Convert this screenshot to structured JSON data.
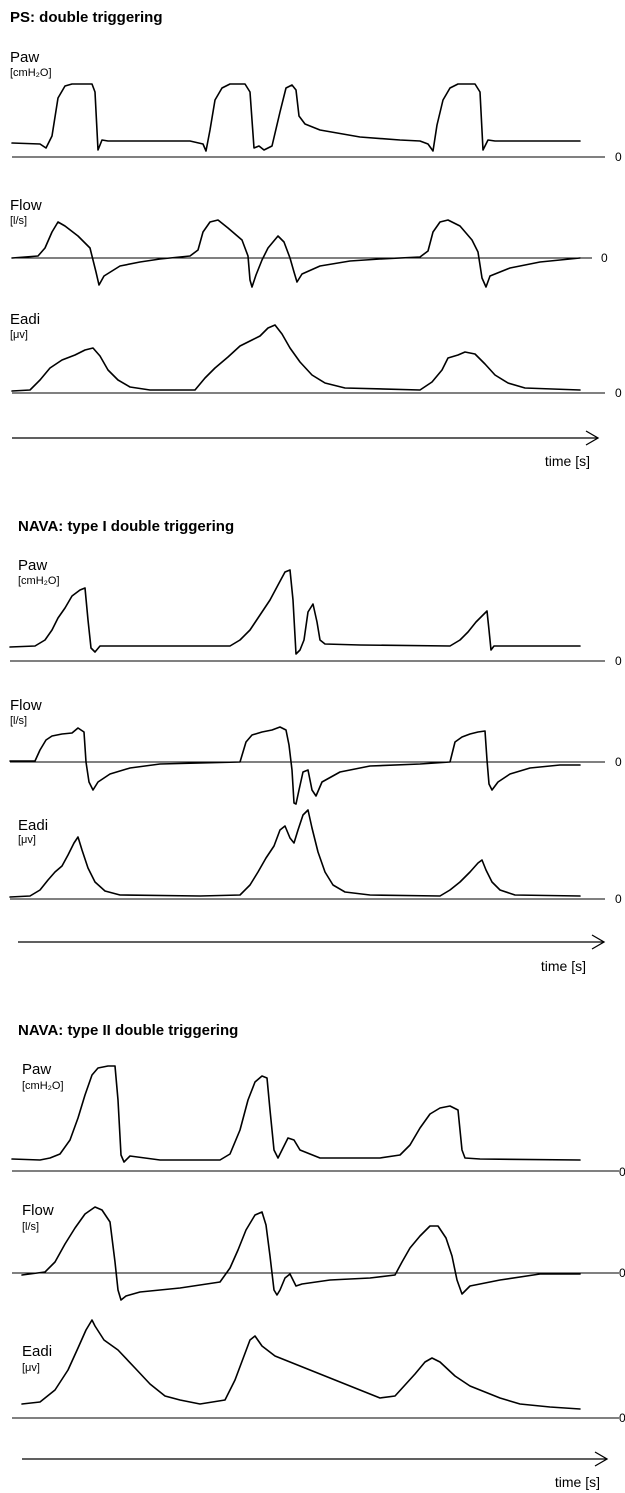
{
  "chart_data": [
    {
      "type": "line",
      "title": "PS: double triggering",
      "xlabel": "time [s]",
      "x": [
        0,
        10,
        20,
        30,
        40,
        50,
        60,
        70,
        80,
        90,
        100
      ],
      "panels": [
        {
          "name": "Paw",
          "unit": "[cmH₂O]",
          "zero_label": "0",
          "ylim": [
            -0.2,
            1
          ],
          "values": [
            0.0,
            0.85,
            0.0,
            0.0,
            0.85,
            0.0,
            0.85,
            0.1,
            0.0,
            0.85,
            0.0
          ]
        },
        {
          "name": "Flow",
          "unit": "[l/s]",
          "zero_label": "0",
          "ylim": [
            -1,
            1
          ],
          "values": [
            0.0,
            0.8,
            -0.6,
            -0.2,
            0.8,
            -0.7,
            0.4,
            -0.2,
            0.0,
            0.8,
            -0.6
          ]
        },
        {
          "name": "Eadi",
          "unit": "[μv]",
          "zero_label": "0",
          "ylim": [
            0,
            1
          ],
          "values": [
            0.0,
            0.4,
            0.6,
            0.0,
            0.6,
            0.9,
            0.3,
            0.0,
            0.0,
            0.5,
            0.0
          ]
        }
      ]
    },
    {
      "type": "line",
      "title": "NAVA: type I double triggering",
      "xlabel": "time [s]",
      "x": [
        0,
        10,
        20,
        30,
        40,
        50,
        60,
        70,
        80,
        90,
        100
      ],
      "panels": [
        {
          "name": "Paw",
          "unit": "[cmH₂O]",
          "zero_label": "0",
          "ylim": [
            -0.2,
            1
          ],
          "values": [
            0.0,
            0.5,
            0.0,
            0.0,
            0.5,
            0.95,
            0.4,
            0.0,
            0.0,
            0.35,
            0.0
          ]
        },
        {
          "name": "Flow",
          "unit": "[l/s]",
          "zero_label": "0",
          "ylim": [
            -1,
            1
          ],
          "values": [
            0.0,
            0.8,
            -0.7,
            -0.1,
            0.8,
            -0.9,
            -0.5,
            0.0,
            0.0,
            0.7,
            -0.5
          ]
        },
        {
          "name": "Eadi",
          "unit": "[μv]",
          "zero_label": "0",
          "ylim": [
            0,
            1
          ],
          "values": [
            0.0,
            0.6,
            0.0,
            0.0,
            0.7,
            1.0,
            0.3,
            0.0,
            0.0,
            0.4,
            0.0
          ]
        }
      ]
    },
    {
      "type": "line",
      "title": "NAVA: type II double triggering",
      "xlabel": "time [s]",
      "x": [
        0,
        10,
        20,
        30,
        40,
        50,
        60,
        70,
        80,
        90,
        100
      ],
      "panels": [
        {
          "name": "Paw",
          "unit": "[cmH₂O]",
          "zero_label": "0",
          "ylim": [
            -0.2,
            1
          ],
          "values": [
            0.0,
            0.95,
            0.0,
            0.0,
            0.8,
            0.2,
            0.0,
            0.0,
            0.6,
            0.0,
            0.0
          ]
        },
        {
          "name": "Flow",
          "unit": "[l/s]",
          "zero_label": "0",
          "ylim": [
            -1,
            1
          ],
          "values": [
            0.0,
            0.9,
            -0.6,
            -0.1,
            0.9,
            -0.3,
            0.0,
            0.1,
            0.8,
            -0.2,
            0.0
          ]
        },
        {
          "name": "Eadi",
          "unit": "[μv]",
          "zero_label": "0",
          "ylim": [
            0,
            1
          ],
          "values": [
            0.0,
            1.0,
            0.3,
            0.0,
            0.8,
            0.4,
            0.2,
            0.0,
            0.55,
            0.2,
            0.0
          ]
        }
      ]
    }
  ]
}
